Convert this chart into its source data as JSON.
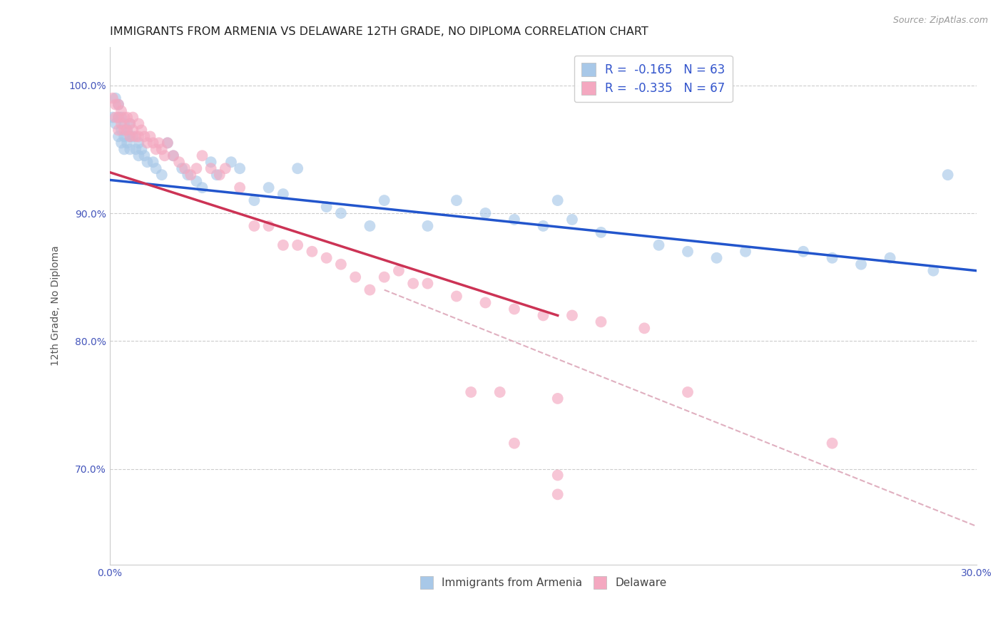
{
  "title": "IMMIGRANTS FROM ARMENIA VS DELAWARE 12TH GRADE, NO DIPLOMA CORRELATION CHART",
  "source_text": "Source: ZipAtlas.com",
  "xlabel": "",
  "ylabel": "12th Grade, No Diploma",
  "xlim": [
    0.0,
    0.3
  ],
  "ylim": [
    0.625,
    1.03
  ],
  "xticks": [
    0.0,
    0.05,
    0.1,
    0.15,
    0.2,
    0.25,
    0.3
  ],
  "xticklabels": [
    "0.0%",
    "",
    "",
    "",
    "",
    "",
    "30.0%"
  ],
  "yticks": [
    0.7,
    0.8,
    0.9,
    1.0
  ],
  "yticklabels": [
    "70.0%",
    "80.0%",
    "90.0%",
    "100.0%"
  ],
  "legend_labels": [
    "Immigrants from Armenia",
    "Delaware"
  ],
  "R_armenia": -0.165,
  "N_armenia": 63,
  "R_delaware": -0.335,
  "N_delaware": 67,
  "color_armenia": "#A8C8E8",
  "color_delaware": "#F4A8C0",
  "trend_color_armenia": "#2255CC",
  "trend_color_delaware": "#CC3355",
  "dashed_color": "#E0B0C0",
  "background_color": "#FFFFFF",
  "title_fontsize": 11.5,
  "axis_label_fontsize": 10,
  "tick_fontsize": 10,
  "legend_fontsize": 12,
  "blue_trend_x": [
    0.0,
    0.3
  ],
  "blue_trend_y": [
    0.926,
    0.855
  ],
  "pink_trend_x": [
    0.0,
    0.155
  ],
  "pink_trend_y": [
    0.932,
    0.82
  ],
  "dashed_trend_x": [
    0.095,
    0.3
  ],
  "dashed_trend_y": [
    0.84,
    0.655
  ],
  "scatter_blue_x": [
    0.001,
    0.002,
    0.002,
    0.003,
    0.003,
    0.003,
    0.004,
    0.004,
    0.004,
    0.005,
    0.005,
    0.005,
    0.006,
    0.006,
    0.007,
    0.007,
    0.007,
    0.008,
    0.009,
    0.01,
    0.01,
    0.011,
    0.012,
    0.013,
    0.015,
    0.016,
    0.018,
    0.02,
    0.022,
    0.025,
    0.027,
    0.03,
    0.032,
    0.035,
    0.037,
    0.042,
    0.045,
    0.05,
    0.055,
    0.06,
    0.065,
    0.075,
    0.08,
    0.09,
    0.095,
    0.11,
    0.12,
    0.13,
    0.14,
    0.15,
    0.155,
    0.16,
    0.17,
    0.19,
    0.2,
    0.21,
    0.22,
    0.24,
    0.25,
    0.26,
    0.27,
    0.285,
    0.29
  ],
  "scatter_blue_y": [
    0.975,
    0.97,
    0.99,
    0.985,
    0.975,
    0.96,
    0.975,
    0.965,
    0.955,
    0.97,
    0.96,
    0.95,
    0.965,
    0.955,
    0.97,
    0.96,
    0.95,
    0.96,
    0.95,
    0.955,
    0.945,
    0.95,
    0.945,
    0.94,
    0.94,
    0.935,
    0.93,
    0.955,
    0.945,
    0.935,
    0.93,
    0.925,
    0.92,
    0.94,
    0.93,
    0.94,
    0.935,
    0.91,
    0.92,
    0.915,
    0.935,
    0.905,
    0.9,
    0.89,
    0.91,
    0.89,
    0.91,
    0.9,
    0.895,
    0.89,
    0.91,
    0.895,
    0.885,
    0.875,
    0.87,
    0.865,
    0.87,
    0.87,
    0.865,
    0.86,
    0.865,
    0.855,
    0.93
  ],
  "scatter_pink_x": [
    0.001,
    0.002,
    0.002,
    0.003,
    0.003,
    0.003,
    0.004,
    0.004,
    0.005,
    0.005,
    0.006,
    0.006,
    0.007,
    0.007,
    0.008,
    0.008,
    0.009,
    0.01,
    0.01,
    0.011,
    0.012,
    0.013,
    0.014,
    0.015,
    0.016,
    0.017,
    0.018,
    0.019,
    0.02,
    0.022,
    0.024,
    0.026,
    0.028,
    0.03,
    0.032,
    0.035,
    0.038,
    0.04,
    0.045,
    0.05,
    0.055,
    0.06,
    0.065,
    0.07,
    0.075,
    0.08,
    0.085,
    0.09,
    0.095,
    0.1,
    0.105,
    0.11,
    0.12,
    0.13,
    0.14,
    0.15,
    0.16,
    0.17,
    0.185,
    0.2,
    0.135,
    0.155,
    0.125,
    0.14,
    0.25,
    0.155,
    0.155
  ],
  "scatter_pink_y": [
    0.99,
    0.985,
    0.975,
    0.985,
    0.975,
    0.965,
    0.98,
    0.97,
    0.975,
    0.965,
    0.975,
    0.965,
    0.97,
    0.96,
    0.975,
    0.965,
    0.96,
    0.97,
    0.96,
    0.965,
    0.96,
    0.955,
    0.96,
    0.955,
    0.95,
    0.955,
    0.95,
    0.945,
    0.955,
    0.945,
    0.94,
    0.935,
    0.93,
    0.935,
    0.945,
    0.935,
    0.93,
    0.935,
    0.92,
    0.89,
    0.89,
    0.875,
    0.875,
    0.87,
    0.865,
    0.86,
    0.85,
    0.84,
    0.85,
    0.855,
    0.845,
    0.845,
    0.835,
    0.83,
    0.825,
    0.82,
    0.82,
    0.815,
    0.81,
    0.76,
    0.76,
    0.755,
    0.76,
    0.72,
    0.72,
    0.695,
    0.68
  ]
}
